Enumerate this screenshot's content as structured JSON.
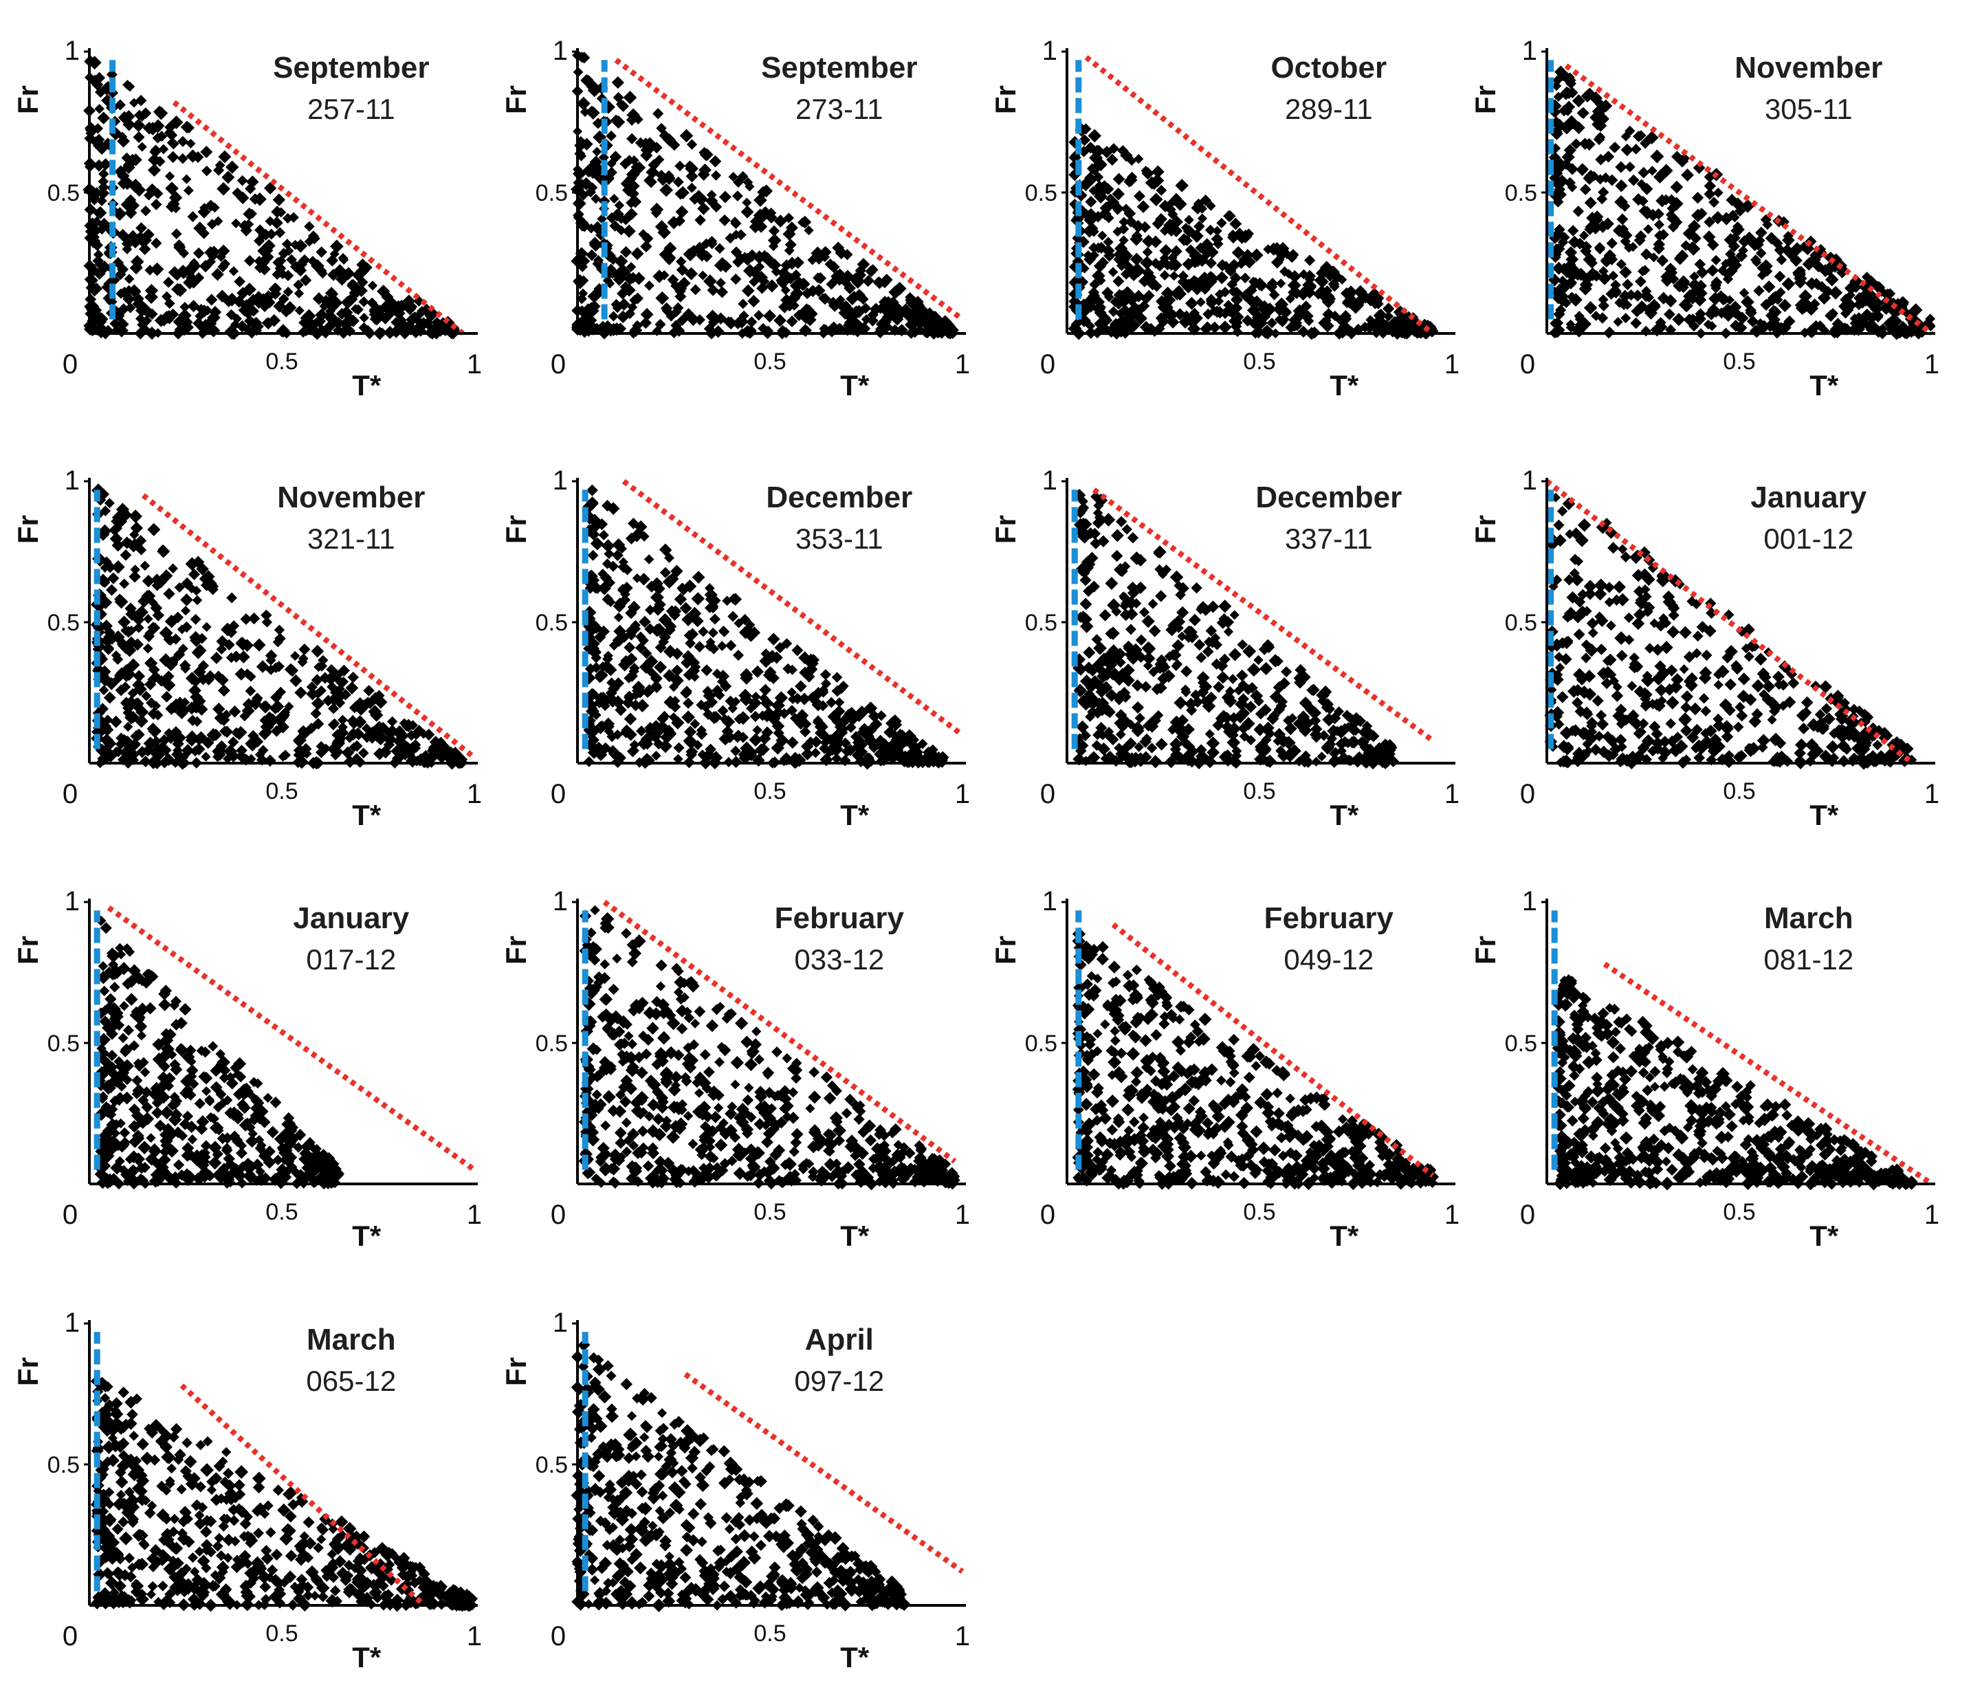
{
  "figure": {
    "description_free": true
  },
  "colors": {
    "points": "#000000",
    "axes": "#000000",
    "vertical_dashed": "#1a8ed6",
    "diagonal_dotted": "#e8322a"
  },
  "chart_data": [
    {
      "type": "scatter",
      "month": "September",
      "code": "257-11",
      "xlabel": "T*",
      "ylabel": "Fr",
      "xlim": [
        0,
        1
      ],
      "ylim": [
        0,
        1
      ],
      "x_ticks": [
        "0",
        "0.5",
        "1"
      ],
      "y_ticks": [
        "0.5",
        "1"
      ],
      "vertical_line_x": 0.06,
      "diagonal_line": [
        [
          0.22,
          0.82
        ],
        [
          0.97,
          0.0
        ]
      ],
      "point_envelope": {
        "x_min": 0.0,
        "x_max": 0.95,
        "fr_top_at_0": 1.0,
        "fr_top_at_max": 0.02,
        "density": 0.55
      },
      "n_points": 600
    },
    {
      "type": "scatter",
      "month": "September",
      "code": "273-11",
      "xlabel": "T*",
      "ylabel": "Fr",
      "xlim": [
        0,
        1
      ],
      "ylim": [
        0,
        1
      ],
      "x_ticks": [
        "0",
        "0.5",
        "1"
      ],
      "y_ticks": [
        "0.5",
        "1"
      ],
      "vertical_line_x": 0.07,
      "diagonal_line": [
        [
          0.1,
          0.97
        ],
        [
          1.0,
          0.05
        ]
      ],
      "point_envelope": {
        "x_min": 0.0,
        "x_max": 0.98,
        "fr_top_at_0": 1.0,
        "fr_top_at_max": 0.02,
        "density": 0.5
      },
      "n_points": 600
    },
    {
      "type": "scatter",
      "month": "October",
      "code": "289-11",
      "xlabel": "T*",
      "ylabel": "Fr",
      "xlim": [
        0,
        1
      ],
      "ylim": [
        0,
        1
      ],
      "x_ticks": [
        "0",
        "0.5",
        "1"
      ],
      "y_ticks": [
        "0.5",
        "1"
      ],
      "vertical_line_x": 0.03,
      "diagonal_line": [
        [
          0.05,
          0.98
        ],
        [
          0.95,
          0.0
        ]
      ],
      "point_envelope": {
        "x_min": 0.02,
        "x_max": 0.95,
        "fr_top_at_0": 0.75,
        "fr_top_at_max": 0.02,
        "density": 0.55
      },
      "n_points": 600
    },
    {
      "type": "scatter",
      "month": "November",
      "code": "305-11",
      "xlabel": "T*",
      "ylabel": "Fr",
      "xlim": [
        0,
        1
      ],
      "ylim": [
        0,
        1
      ],
      "x_ticks": [
        "0",
        "0.5",
        "1"
      ],
      "y_ticks": [
        "0.5",
        "1"
      ],
      "vertical_line_x": 0.01,
      "diagonal_line": [
        [
          0.05,
          0.95
        ],
        [
          1.0,
          0.0
        ]
      ],
      "point_envelope": {
        "x_min": 0.02,
        "x_max": 1.0,
        "fr_top_at_0": 0.95,
        "fr_top_at_max": 0.05,
        "density": 0.55
      },
      "n_points": 620
    },
    {
      "type": "scatter",
      "month": "November",
      "code": "321-11",
      "xlabel": "T*",
      "ylabel": "Fr",
      "xlim": [
        0,
        1
      ],
      "ylim": [
        0,
        1
      ],
      "x_ticks": [
        "0",
        "0.5",
        "1"
      ],
      "y_ticks": [
        "0.5",
        "1"
      ],
      "vertical_line_x": 0.02,
      "diagonal_line": [
        [
          0.14,
          0.95
        ],
        [
          1.0,
          0.02
        ]
      ],
      "point_envelope": {
        "x_min": 0.02,
        "x_max": 0.97,
        "fr_top_at_0": 0.98,
        "fr_top_at_max": 0.02,
        "density": 0.55
      },
      "n_points": 620
    },
    {
      "type": "scatter",
      "month": "December",
      "code": "353-11",
      "xlabel": "T*",
      "ylabel": "Fr",
      "xlim": [
        0,
        1
      ],
      "ylim": [
        0,
        1
      ],
      "x_ticks": [
        "0",
        "0.5",
        "1"
      ],
      "y_ticks": [
        "0.5",
        "1"
      ],
      "vertical_line_x": 0.02,
      "diagonal_line": [
        [
          0.12,
          1.0
        ],
        [
          1.0,
          0.1
        ]
      ],
      "point_envelope": {
        "x_min": 0.03,
        "x_max": 0.95,
        "fr_top_at_0": 0.98,
        "fr_top_at_max": 0.02,
        "density": 0.5
      },
      "n_points": 600
    },
    {
      "type": "scatter",
      "month": "December",
      "code": "337-11",
      "xlabel": "T*",
      "ylabel": "Fr",
      "xlim": [
        0,
        1
      ],
      "ylim": [
        0,
        1
      ],
      "x_ticks": [
        "0",
        "0.5",
        "1"
      ],
      "y_ticks": [
        "0.5",
        "1"
      ],
      "vertical_line_x": 0.02,
      "diagonal_line": [
        [
          0.07,
          0.97
        ],
        [
          0.95,
          0.08
        ]
      ],
      "point_envelope": {
        "x_min": 0.03,
        "x_max": 0.85,
        "fr_top_at_0": 1.0,
        "fr_top_at_max": 0.05,
        "density": 0.45
      },
      "n_points": 520
    },
    {
      "type": "scatter",
      "month": "January",
      "code": "001-12",
      "xlabel": "T*",
      "ylabel": "Fr",
      "xlim": [
        0,
        1
      ],
      "ylim": [
        0,
        1
      ],
      "x_ticks": [
        "0",
        "0.5",
        "1"
      ],
      "y_ticks": [
        "0.5",
        "1"
      ],
      "vertical_line_x": 0.01,
      "diagonal_line": [
        [
          0.0,
          1.0
        ],
        [
          0.95,
          0.0
        ]
      ],
      "point_envelope": {
        "x_min": 0.01,
        "x_max": 0.95,
        "fr_top_at_0": 1.0,
        "fr_top_at_max": 0.05,
        "density": 0.35
      },
      "n_points": 480
    },
    {
      "type": "scatter",
      "month": "January",
      "code": "017-12",
      "xlabel": "T*",
      "ylabel": "Fr",
      "xlim": [
        0,
        1
      ],
      "ylim": [
        0,
        1
      ],
      "x_ticks": [
        "0",
        "0.5",
        "1"
      ],
      "y_ticks": [
        "0.5",
        "1"
      ],
      "vertical_line_x": 0.02,
      "diagonal_line": [
        [
          0.05,
          0.98
        ],
        [
          1.0,
          0.05
        ]
      ],
      "point_envelope": {
        "x_min": 0.03,
        "x_max": 0.65,
        "fr_top_at_0": 0.95,
        "fr_top_at_max": 0.05,
        "density": 0.45
      },
      "n_points": 500
    },
    {
      "type": "scatter",
      "month": "February",
      "code": "033-12",
      "xlabel": "T*",
      "ylabel": "Fr",
      "xlim": [
        0,
        1
      ],
      "ylim": [
        0,
        1
      ],
      "x_ticks": [
        "0",
        "0.5",
        "1"
      ],
      "y_ticks": [
        "0.5",
        "1"
      ],
      "vertical_line_x": 0.02,
      "diagonal_line": [
        [
          0.07,
          1.0
        ],
        [
          0.98,
          0.08
        ]
      ],
      "point_envelope": {
        "x_min": 0.02,
        "x_max": 0.98,
        "fr_top_at_0": 1.0,
        "fr_top_at_max": 0.05,
        "density": 0.5
      },
      "n_points": 600
    },
    {
      "type": "scatter",
      "month": "February",
      "code": "049-12",
      "xlabel": "T*",
      "ylabel": "Fr",
      "xlim": [
        0,
        1
      ],
      "ylim": [
        0,
        1
      ],
      "x_ticks": [
        "0",
        "0.5",
        "1"
      ],
      "y_ticks": [
        "0.5",
        "1"
      ],
      "vertical_line_x": 0.03,
      "diagonal_line": [
        [
          0.12,
          0.92
        ],
        [
          0.95,
          0.03
        ]
      ],
      "point_envelope": {
        "x_min": 0.03,
        "x_max": 0.95,
        "fr_top_at_0": 0.9,
        "fr_top_at_max": 0.05,
        "density": 0.55
      },
      "n_points": 620
    },
    {
      "type": "scatter",
      "month": "March",
      "code": "081-12",
      "xlabel": "T*",
      "ylabel": "Fr",
      "xlim": [
        0,
        1
      ],
      "ylim": [
        0,
        1
      ],
      "x_ticks": [
        "0",
        "0.5",
        "1"
      ],
      "y_ticks": [
        "0.5",
        "1"
      ],
      "vertical_line_x": 0.02,
      "diagonal_line": [
        [
          0.15,
          0.78
        ],
        [
          1.0,
          0.0
        ]
      ],
      "point_envelope": {
        "x_min": 0.03,
        "x_max": 0.95,
        "fr_top_at_0": 0.75,
        "fr_top_at_max": 0.02,
        "density": 0.6
      },
      "n_points": 620
    },
    {
      "type": "scatter",
      "month": "March",
      "code": "065-12",
      "xlabel": "T*",
      "ylabel": "Fr",
      "xlim": [
        0,
        1
      ],
      "ylim": [
        0,
        1
      ],
      "x_ticks": [
        "0",
        "0.5",
        "1"
      ],
      "y_ticks": [
        "0.5",
        "1"
      ],
      "vertical_line_x": 0.02,
      "diagonal_line": [
        [
          0.24,
          0.78
        ],
        [
          0.87,
          0.0
        ]
      ],
      "point_envelope": {
        "x_min": 0.02,
        "x_max": 1.0,
        "fr_top_at_0": 0.82,
        "fr_top_at_max": 0.02,
        "density": 0.55
      },
      "n_points": 600
    },
    {
      "type": "scatter",
      "month": "April",
      "code": "097-12",
      "xlabel": "T*",
      "ylabel": "Fr",
      "xlim": [
        0,
        1
      ],
      "ylim": [
        0,
        1
      ],
      "x_ticks": [
        "0",
        "0.5",
        "1"
      ],
      "y_ticks": [
        "0.5",
        "1"
      ],
      "vertical_line_x": 0.02,
      "diagonal_line": [
        [
          0.28,
          0.82
        ],
        [
          1.0,
          0.12
        ]
      ],
      "point_envelope": {
        "x_min": 0.0,
        "x_max": 0.85,
        "fr_top_at_0": 0.95,
        "fr_top_at_max": 0.05,
        "density": 0.45
      },
      "n_points": 560
    }
  ]
}
